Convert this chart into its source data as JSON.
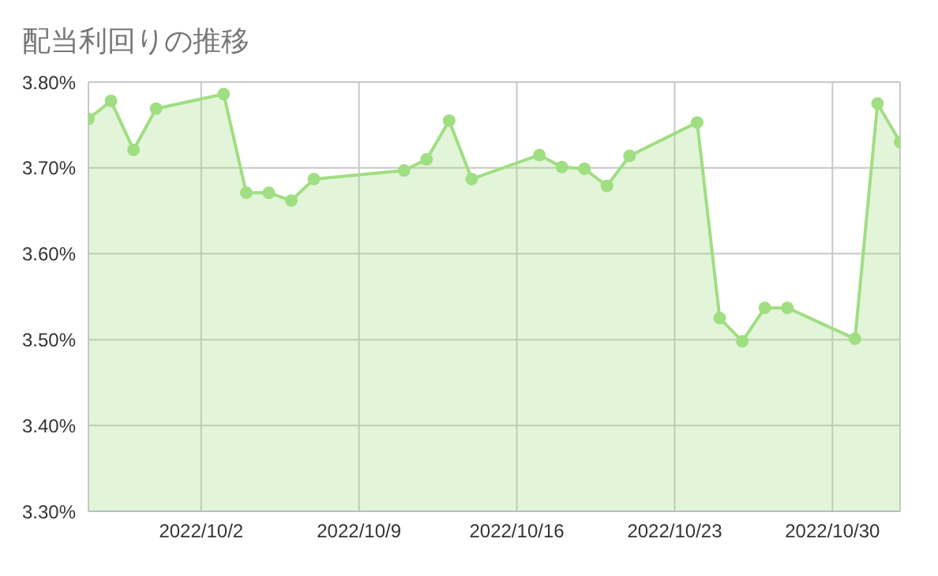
{
  "chart_data": {
    "type": "area",
    "title": "配当利回りの推移",
    "x": [
      "2022-09-27",
      "2022-09-28",
      "2022-09-29",
      "2022-09-30",
      "2022-10-03",
      "2022-10-04",
      "2022-10-05",
      "2022-10-06",
      "2022-10-07",
      "2022-10-11",
      "2022-10-12",
      "2022-10-13",
      "2022-10-14",
      "2022-10-17",
      "2022-10-18",
      "2022-10-19",
      "2022-10-20",
      "2022-10-21",
      "2022-10-24",
      "2022-10-25",
      "2022-10-26",
      "2022-10-27",
      "2022-10-28",
      "2022-10-31",
      "2022-11-01",
      "2022-11-02"
    ],
    "series": [
      {
        "color": "#a0de82",
        "values": [
          3.757,
          3.778,
          3.721,
          3.769,
          3.786,
          3.671,
          3.671,
          3.662,
          3.687,
          3.697,
          3.71,
          3.755,
          3.687,
          3.715,
          3.701,
          3.699,
          3.679,
          3.714,
          3.753,
          3.525,
          3.498,
          3.537,
          3.537,
          3.501,
          3.775,
          3.73
        ]
      }
    ],
    "xlim": [
      "2022-09-27",
      "2022-11-02"
    ],
    "xticks": [
      {
        "value": "2022-10-02",
        "label": "2022/10/2"
      },
      {
        "value": "2022-10-09",
        "label": "2022/10/9"
      },
      {
        "value": "2022-10-16",
        "label": "2022/10/16"
      },
      {
        "value": "2022-10-23",
        "label": "2022/10/23"
      },
      {
        "value": "2022-10-30",
        "label": "2022/10/30"
      }
    ],
    "ylim": [
      3.3,
      3.8
    ],
    "yticks": [
      {
        "value": 3.3,
        "label": "3.30%"
      },
      {
        "value": 3.4,
        "label": "3.40%"
      },
      {
        "value": 3.5,
        "label": "3.50%"
      },
      {
        "value": 3.6,
        "label": "3.60%"
      },
      {
        "value": 3.7,
        "label": "3.70%"
      },
      {
        "value": 3.8,
        "label": "3.80%"
      }
    ],
    "grid": true,
    "marker": "circle",
    "legend": false
  }
}
